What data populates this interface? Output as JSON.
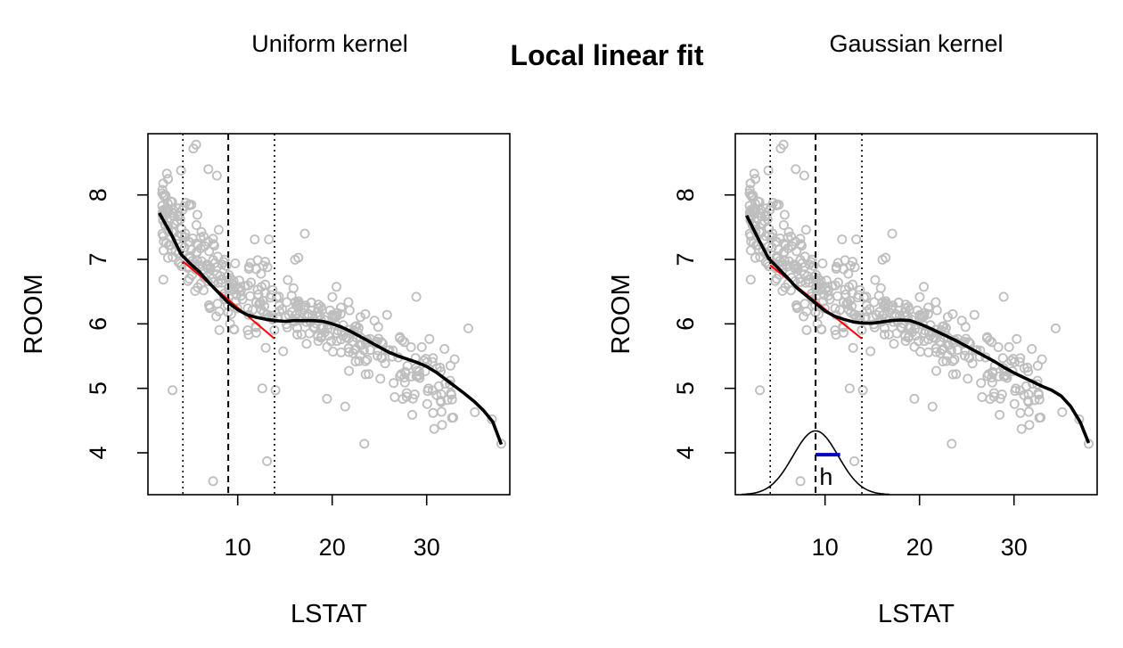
{
  "title": "Local linear fit",
  "colors": {
    "points": "#bebebe",
    "smooth": "#000000",
    "local_fit": "#ff0000",
    "bandwidth": "#0000cc"
  },
  "chart_data": [
    {
      "type": "scatter",
      "subtitle": "Uniform kernel",
      "xlabel": "LSTAT",
      "ylabel": "ROOM",
      "xlim": [
        0.5,
        38.8
      ],
      "ylim": [
        3.35,
        8.95
      ],
      "xticks": [
        10,
        20,
        30
      ],
      "yticks": [
        4,
        5,
        6,
        7,
        8
      ],
      "center_x": 9,
      "window": [
        4.2,
        13.9
      ],
      "local_fit_line": {
        "x": [
          4.2,
          13.9
        ],
        "y": [
          6.97,
          5.77
        ]
      },
      "smooth_curve": {
        "x": [
          1.7,
          3,
          4,
          5,
          6,
          7,
          8,
          9,
          10,
          11,
          12,
          13,
          14,
          15,
          16,
          17,
          18,
          19,
          20,
          21,
          22,
          23,
          24,
          25,
          26,
          27,
          28,
          29,
          30,
          31,
          32,
          33,
          34,
          35,
          36,
          37,
          37.9
        ],
        "y": [
          7.72,
          7.38,
          7.08,
          6.93,
          6.8,
          6.63,
          6.48,
          6.33,
          6.22,
          6.14,
          6.1,
          6.07,
          6.05,
          6.04,
          6.05,
          6.05,
          6.05,
          6.04,
          6.0,
          5.95,
          5.88,
          5.8,
          5.72,
          5.64,
          5.56,
          5.5,
          5.45,
          5.4,
          5.34,
          5.25,
          5.14,
          5.03,
          4.92,
          4.8,
          4.66,
          4.48,
          4.13
        ]
      },
      "kernel_curve": null
    },
    {
      "type": "scatter",
      "subtitle": "Gaussian kernel",
      "xlabel": "LSTAT",
      "ylabel": "ROOM",
      "xlim": [
        0.5,
        38.8
      ],
      "ylim": [
        3.35,
        8.95
      ],
      "xticks": [
        10,
        20,
        30
      ],
      "yticks": [
        4,
        5,
        6,
        7,
        8
      ],
      "center_x": 9,
      "window": [
        4.2,
        13.9
      ],
      "local_fit_line": {
        "x": [
          4.2,
          13.9
        ],
        "y": [
          6.91,
          5.77
        ]
      },
      "smooth_curve": {
        "x": [
          1.7,
          3,
          4,
          5,
          6,
          7,
          8,
          9,
          10,
          11,
          12,
          13,
          14,
          15,
          16,
          17,
          18,
          19,
          20,
          21,
          22,
          23,
          24,
          25,
          26,
          27,
          28,
          29,
          30,
          31,
          32,
          33,
          34,
          35,
          36,
          37,
          37.9
        ],
        "y": [
          7.68,
          7.3,
          7.02,
          6.87,
          6.72,
          6.56,
          6.44,
          6.32,
          6.2,
          6.12,
          6.07,
          6.03,
          6.01,
          6.01,
          6.03,
          6.05,
          6.06,
          6.05,
          6.0,
          5.94,
          5.87,
          5.8,
          5.73,
          5.65,
          5.57,
          5.49,
          5.41,
          5.32,
          5.24,
          5.17,
          5.1,
          5.03,
          4.97,
          4.88,
          4.72,
          4.48,
          4.15
        ]
      },
      "kernel_curve": {
        "center": 9,
        "sd": 2.4,
        "base": 3.35,
        "peak": 4.34,
        "x_range": [
          1.2,
          16.8
        ]
      },
      "bandwidth_marker": {
        "x": [
          9,
          11.6
        ],
        "y": 3.97,
        "label": "h"
      }
    }
  ]
}
